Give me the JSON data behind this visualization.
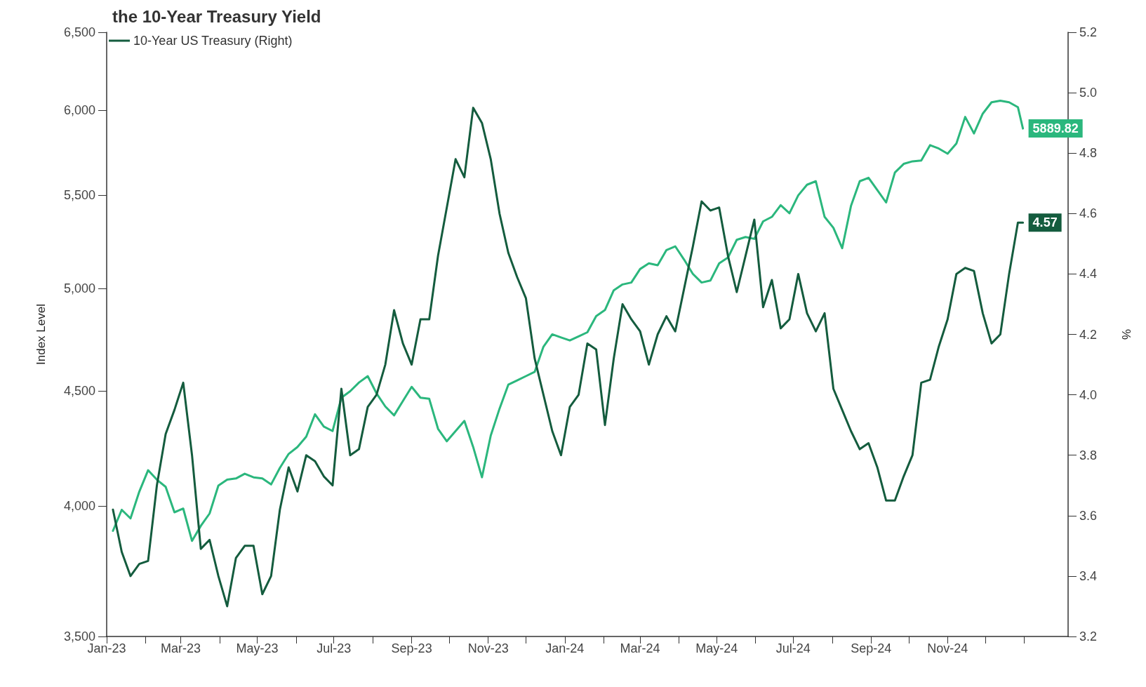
{
  "chart_data": {
    "type": "line",
    "title": "the 10-Year Treasury Yield",
    "ylabel": "Index Level",
    "y2label": "%",
    "log": "y",
    "legend": "top left",
    "marker": "none",
    "x": [
      "2023-01-06",
      "2023-01-13",
      "2023-01-20",
      "2023-01-27",
      "2023-02-03",
      "2023-02-10",
      "2023-02-17",
      "2023-02-24",
      "2023-03-03",
      "2023-03-10",
      "2023-03-17",
      "2023-03-24",
      "2023-03-31",
      "2023-04-07",
      "2023-04-14",
      "2023-04-21",
      "2023-04-28",
      "2023-05-05",
      "2023-05-12",
      "2023-05-19",
      "2023-05-26",
      "2023-06-02",
      "2023-06-09",
      "2023-06-16",
      "2023-06-23",
      "2023-06-30",
      "2023-07-07",
      "2023-07-14",
      "2023-07-21",
      "2023-07-28",
      "2023-08-04",
      "2023-08-11",
      "2023-08-18",
      "2023-08-25",
      "2023-09-01",
      "2023-09-08",
      "2023-09-15",
      "2023-09-22",
      "2023-09-29",
      "2023-10-06",
      "2023-10-13",
      "2023-10-20",
      "2023-10-27",
      "2023-11-03",
      "2023-11-10",
      "2023-11-17",
      "2023-11-24",
      "2023-12-01",
      "2023-12-08",
      "2023-12-15",
      "2023-12-22",
      "2023-12-29",
      "2024-01-05",
      "2024-01-12",
      "2024-01-19",
      "2024-01-26",
      "2024-02-02",
      "2024-02-09",
      "2024-02-16",
      "2024-02-23",
      "2024-03-01",
      "2024-03-08",
      "2024-03-15",
      "2024-03-22",
      "2024-03-29",
      "2024-04-05",
      "2024-04-12",
      "2024-04-19",
      "2024-04-26",
      "2024-05-03",
      "2024-05-10",
      "2024-05-17",
      "2024-05-24",
      "2024-05-31",
      "2024-06-07",
      "2024-06-14",
      "2024-06-21",
      "2024-06-28",
      "2024-07-05",
      "2024-07-12",
      "2024-07-19",
      "2024-07-26",
      "2024-08-02",
      "2024-08-09",
      "2024-08-16",
      "2024-08-23",
      "2024-08-30",
      "2024-09-06",
      "2024-09-13",
      "2024-09-20",
      "2024-09-27",
      "2024-10-04",
      "2024-10-11",
      "2024-10-18",
      "2024-10-25",
      "2024-11-01",
      "2024-11-08",
      "2024-11-15",
      "2024-11-22",
      "2024-11-29",
      "2024-12-06",
      "2024-12-13",
      "2024-12-20",
      "2024-12-27",
      "2024-12-31"
    ],
    "series": [
      {
        "name": "10-Year US Treasury (Right)",
        "color": "#145c3e",
        "axis": "y2",
        "values": [
          3.62,
          3.48,
          3.4,
          3.44,
          3.45,
          3.7,
          3.87,
          3.95,
          4.04,
          3.8,
          3.49,
          3.52,
          3.4,
          3.3,
          3.46,
          3.5,
          3.5,
          3.34,
          3.4,
          3.62,
          3.76,
          3.68,
          3.8,
          3.78,
          3.73,
          3.7,
          4.02,
          3.8,
          3.82,
          3.96,
          4.0,
          4.1,
          4.28,
          4.17,
          4.1,
          4.25,
          4.25,
          4.46,
          4.62,
          4.78,
          4.72,
          4.95,
          4.9,
          4.78,
          4.6,
          4.47,
          4.39,
          4.32,
          4.12,
          4.0,
          3.88,
          3.8,
          3.96,
          4.0,
          4.17,
          4.15,
          3.9,
          4.12,
          4.3,
          4.25,
          4.21,
          4.1,
          4.2,
          4.26,
          4.21,
          4.35,
          4.49,
          4.64,
          4.61,
          4.62,
          4.46,
          4.34,
          4.46,
          4.58,
          4.29,
          4.38,
          4.22,
          4.25,
          4.4,
          4.27,
          4.21,
          4.27,
          4.02,
          3.95,
          3.88,
          3.82,
          3.84,
          3.76,
          3.65,
          3.65,
          3.73,
          3.8,
          4.04,
          4.05,
          4.16,
          4.25,
          4.4,
          4.42,
          4.41,
          4.27,
          4.17,
          4.2,
          4.4,
          4.57,
          4.57
        ],
        "value_labels": [
          null,
          null,
          null,
          null,
          null,
          null,
          null,
          null,
          null,
          null,
          null,
          null,
          null,
          null,
          null,
          null,
          null,
          null,
          null,
          null,
          null,
          null,
          null,
          null,
          null,
          null,
          null,
          null,
          null,
          null,
          null,
          null,
          null,
          null,
          null,
          null,
          null,
          null,
          null,
          null,
          null,
          null,
          null,
          null,
          null,
          null,
          null,
          null,
          null,
          null,
          null,
          null,
          null,
          null,
          null,
          null,
          null,
          null,
          null,
          null,
          null,
          null,
          null,
          null,
          null,
          null,
          null,
          null,
          null,
          null,
          null,
          null,
          null,
          null,
          null,
          null,
          null,
          null,
          null,
          null,
          null,
          null,
          null,
          null,
          null,
          null,
          null,
          null,
          null,
          null,
          null,
          null,
          null,
          null,
          null,
          null,
          null,
          null,
          null,
          null,
          null,
          null,
          null,
          null,
          "4.57"
        ]
      },
      {
        "color": "#2bb77d",
        "values": [
          3900,
          3985,
          3950,
          4060,
          4150,
          4110,
          4080,
          3975,
          3990,
          3860,
          3920,
          3970,
          4085,
          4110,
          4115,
          4135,
          4120,
          4115,
          4090,
          4160,
          4220,
          4250,
          4295,
          4395,
          4340,
          4320,
          4470,
          4500,
          4540,
          4570,
          4490,
          4430,
          4390,
          4455,
          4520,
          4470,
          4465,
          4330,
          4275,
          4320,
          4365,
          4250,
          4120,
          4300,
          4420,
          4530,
          4550,
          4570,
          4590,
          4710,
          4770,
          4755,
          4740,
          4760,
          4780,
          4860,
          4890,
          4990,
          5020,
          5030,
          5100,
          5130,
          5120,
          5200,
          5220,
          5150,
          5075,
          5030,
          5040,
          5130,
          5160,
          5255,
          5270,
          5260,
          5355,
          5380,
          5445,
          5400,
          5500,
          5560,
          5580,
          5380,
          5320,
          5210,
          5440,
          5580,
          5600,
          5530,
          5460,
          5630,
          5680,
          5695,
          5700,
          5790,
          5770,
          5740,
          5800,
          5960,
          5860,
          5980,
          6050,
          6060,
          6050,
          6020,
          5889.82
        ],
        "value_labels": [
          null,
          null,
          null,
          null,
          null,
          null,
          null,
          null,
          null,
          null,
          null,
          null,
          null,
          null,
          null,
          null,
          null,
          null,
          null,
          null,
          null,
          null,
          null,
          null,
          null,
          null,
          null,
          null,
          null,
          null,
          null,
          null,
          null,
          null,
          null,
          null,
          null,
          null,
          null,
          null,
          null,
          null,
          null,
          null,
          null,
          null,
          null,
          null,
          null,
          null,
          null,
          null,
          null,
          null,
          null,
          null,
          null,
          null,
          null,
          null,
          null,
          null,
          null,
          null,
          null,
          null,
          null,
          null,
          null,
          null,
          null,
          null,
          null,
          null,
          null,
          null,
          null,
          null,
          null,
          null,
          null,
          null,
          null,
          null,
          null,
          null,
          null,
          null,
          null,
          null,
          null,
          null,
          null,
          null,
          null,
          null,
          null,
          null,
          null,
          null,
          null,
          null,
          null,
          null,
          "5889.82"
        ]
      }
    ],
    "xlim": [
      "2023-01-01",
      "2025-02-05"
    ],
    "xticks": [
      {
        "value": "2023-01-01",
        "label": "Jan-23"
      },
      {
        "value": "2023-02-01",
        "label": null
      },
      {
        "value": "2023-03-01",
        "label": "Mar-23"
      },
      {
        "value": "2023-04-01",
        "label": null
      },
      {
        "value": "2023-05-01",
        "label": "May-23"
      },
      {
        "value": "2023-06-01",
        "label": null
      },
      {
        "value": "2023-07-01",
        "label": "Jul-23"
      },
      {
        "value": "2023-08-01",
        "label": null
      },
      {
        "value": "2023-09-01",
        "label": "Sep-23"
      },
      {
        "value": "2023-10-01",
        "label": null
      },
      {
        "value": "2023-11-01",
        "label": "Nov-23"
      },
      {
        "value": "2023-12-01",
        "label": null
      },
      {
        "value": "2024-01-01",
        "label": "Jan-24"
      },
      {
        "value": "2024-02-01",
        "label": null
      },
      {
        "value": "2024-03-01",
        "label": "Mar-24"
      },
      {
        "value": "2024-04-01",
        "label": null
      },
      {
        "value": "2024-05-01",
        "label": "May-24"
      },
      {
        "value": "2024-06-01",
        "label": null
      },
      {
        "value": "2024-07-01",
        "label": "Jul-24"
      },
      {
        "value": "2024-08-01",
        "label": null
      },
      {
        "value": "2024-09-01",
        "label": "Sep-24"
      },
      {
        "value": "2024-10-01",
        "label": null
      },
      {
        "value": "2024-11-01",
        "label": "Nov-24"
      },
      {
        "value": "2024-12-01",
        "label": null
      },
      {
        "value": "2025-01-01",
        "label": null
      }
    ],
    "ylim": [
      3500,
      6500
    ],
    "yticks": [
      {
        "value": 3500,
        "label": "3,500"
      },
      {
        "value": 4000,
        "label": "4,000"
      },
      {
        "value": 4500,
        "label": "4,500"
      },
      {
        "value": 5000,
        "label": "5,000"
      },
      {
        "value": 5500,
        "label": "5,500"
      },
      {
        "value": 6000,
        "label": "6,000"
      },
      {
        "value": 6500,
        "label": "6,500"
      }
    ],
    "y2lim": [
      3.2,
      5.2
    ],
    "y2ticks": [
      {
        "value": 3.2,
        "label": "3.2"
      },
      {
        "value": 3.4,
        "label": "3.4"
      },
      {
        "value": 3.6,
        "label": "3.6"
      },
      {
        "value": 3.8,
        "label": "3.8"
      },
      {
        "value": 4.0,
        "label": "4.0"
      },
      {
        "value": 4.2,
        "label": "4.2"
      },
      {
        "value": 4.4,
        "label": "4.4"
      },
      {
        "value": 4.6,
        "label": "4.6"
      },
      {
        "value": 4.8,
        "label": "4.8"
      },
      {
        "value": 5.0,
        "label": "5.0"
      },
      {
        "value": 5.2,
        "label": "5.2"
      }
    ]
  }
}
